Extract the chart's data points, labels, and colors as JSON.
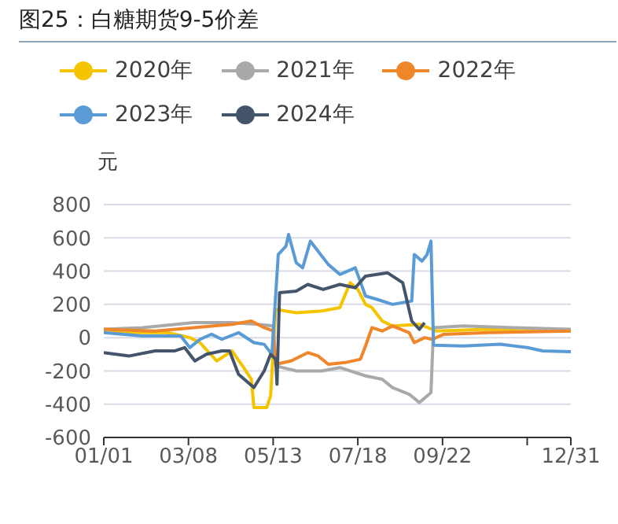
{
  "chart_data": {
    "type": "line",
    "title": "图25：白糖期货9-5价差",
    "ylabel": "元",
    "legend": "top",
    "grid": "y",
    "marker": "none",
    "line_style": "solid",
    "xlim": [
      "--01-01",
      "--12-31"
    ],
    "xticks": [
      {
        "value": "--01-01",
        "label": "01/01"
      },
      {
        "value": "--03-08",
        "label": "03/08"
      },
      {
        "value": "--05-13",
        "label": "05/13"
      },
      {
        "value": "--07-18",
        "label": "07/18"
      },
      {
        "value": "--09-22",
        "label": "09/22"
      },
      {
        "value": "--11-27",
        "label": null
      },
      {
        "value": "--12-31",
        "label": "12/31"
      }
    ],
    "ylim": [
      -600,
      800
    ],
    "yticks": [
      -600,
      -400,
      -200,
      0,
      200,
      400,
      600,
      800
    ],
    "series": [
      {
        "name": "2020年",
        "color": "#f5c400",
        "x": [
          "--01-01",
          "--01-21",
          "--02-20",
          "--03-09",
          "--03-17",
          "--03-30",
          "--04-11",
          "--04-20",
          "--04-26",
          "--04-28",
          "--05-08",
          "--05-11",
          "--05-15",
          "--05-31",
          "--06-20",
          "--07-04",
          "--07-12",
          "--07-18",
          "--07-24",
          "--07-29",
          "--08-06",
          "--08-14",
          "--09-04",
          "--09-17",
          "--10-28",
          "--12-31"
        ],
        "values": [
          50,
          30,
          30,
          0,
          -30,
          -140,
          -80,
          -180,
          -250,
          -420,
          -420,
          -350,
          170,
          150,
          160,
          180,
          330,
          290,
          200,
          180,
          100,
          70,
          80,
          40,
          50,
          40
        ]
      },
      {
        "name": "2021年",
        "color": "#a9a9a9",
        "x": [
          "--01-01",
          "--01-31",
          "--03-12",
          "--04-11",
          "--05-01",
          "--05-13",
          "--05-15",
          "--05-31",
          "--06-20",
          "--07-04",
          "--07-12",
          "--07-24",
          "--08-06",
          "--08-14",
          "--08-27",
          "--09-04",
          "--09-13",
          "--09-15",
          "--10-08",
          "--11-17",
          "--12-31"
        ],
        "values": [
          50,
          60,
          90,
          90,
          80,
          70,
          -170,
          -200,
          -200,
          -180,
          -200,
          -230,
          -250,
          -300,
          -340,
          -390,
          -330,
          60,
          70,
          60,
          50
        ]
      },
      {
        "name": "2022年",
        "color": "#f0862a",
        "x": [
          "--01-01",
          "--02-10",
          "--03-12",
          "--04-11",
          "--04-26",
          "--05-06",
          "--05-13",
          "--05-15",
          "--05-27",
          "--06-09",
          "--06-17",
          "--06-25",
          "--07-08",
          "--07-20",
          "--07-24",
          "--07-29",
          "--08-06",
          "--08-14",
          "--08-27",
          "--08-31",
          "--09-08",
          "--09-14",
          "--09-23",
          "--10-28",
          "--12-31"
        ],
        "values": [
          50,
          40,
          60,
          80,
          100,
          60,
          40,
          -160,
          -140,
          -90,
          -110,
          -160,
          -150,
          -130,
          -50,
          60,
          40,
          70,
          30,
          -30,
          0,
          -10,
          20,
          30,
          40
        ]
      },
      {
        "name": "2023年",
        "color": "#5b9bd5",
        "x": [
          "--01-01",
          "--01-31",
          "--03-02",
          "--03-09",
          "--03-17",
          "--03-26",
          "--04-03",
          "--04-16",
          "--04-28",
          "--05-06",
          "--05-12",
          "--05-17",
          "--05-23",
          "--05-25",
          "--05-31",
          "--06-05",
          "--06-11",
          "--06-17",
          "--06-25",
          "--07-04",
          "--07-16",
          "--07-24",
          "--08-02",
          "--08-14",
          "--08-29",
          "--08-31",
          "--09-06",
          "--09-10",
          "--09-13",
          "--09-15",
          "--10-08",
          "--11-06",
          "--11-27",
          "--12-09",
          "--12-31"
        ],
        "values": [
          30,
          10,
          10,
          -60,
          -10,
          20,
          -10,
          30,
          -30,
          -40,
          -100,
          500,
          550,
          620,
          450,
          420,
          580,
          520,
          440,
          380,
          420,
          250,
          230,
          200,
          220,
          500,
          460,
          500,
          580,
          -45,
          -50,
          -40,
          -60,
          -80,
          -85
        ]
      },
      {
        "name": "2024年",
        "color": "#44546a",
        "x": [
          "--01-01",
          "--01-21",
          "--02-10",
          "--02-25",
          "--03-05",
          "--03-13",
          "--03-22",
          "--04-03",
          "--04-09",
          "--04-16",
          "--04-28",
          "--05-06",
          "--05-11",
          "--05-15",
          "--05-16",
          "--05-18",
          "--05-31",
          "--06-09",
          "--06-21",
          "--07-04",
          "--07-16",
          "--07-24",
          "--08-10",
          "--08-22",
          "--08-29",
          "--09-04",
          "--09-08"
        ],
        "values": [
          -90,
          -110,
          -80,
          -80,
          -60,
          -140,
          -100,
          -80,
          -80,
          -220,
          -300,
          -200,
          -100,
          -130,
          -280,
          270,
          280,
          320,
          290,
          320,
          300,
          370,
          390,
          330,
          100,
          50,
          90
        ]
      }
    ]
  }
}
